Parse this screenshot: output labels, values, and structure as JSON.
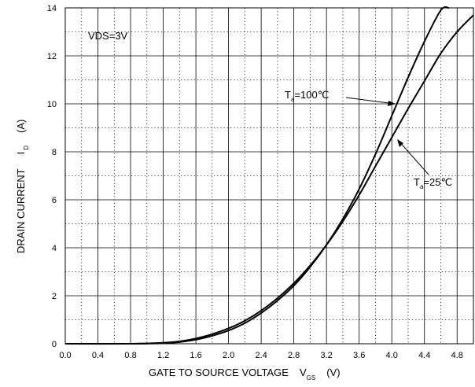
{
  "chart_data": {
    "type": "line",
    "title": "",
    "xlabel": {
      "main": "GATE TO SOURCE VOLTAGE",
      "symbol": "V",
      "subscript": "GS",
      "unit": "(V)"
    },
    "ylabel": {
      "main": "DRAIN CURRENT",
      "symbol": "I",
      "subscript": "D",
      "unit": "(A)"
    },
    "xlim": [
      0,
      5.0
    ],
    "ylim": [
      0,
      14
    ],
    "grid": true,
    "x_ticks": [
      "0.0",
      "0.4",
      "0.8",
      "1.2",
      "1.6",
      "2.0",
      "2.4",
      "2.8",
      "3.2",
      "3.6",
      "4.0",
      "4.4",
      "4.8"
    ],
    "y_ticks": [
      "0",
      "2",
      "4",
      "6",
      "8",
      "10",
      "12",
      "14"
    ],
    "annotation_condition": "VDS=3V",
    "series": [
      {
        "label": {
          "symbol": "T",
          "subscript": "a",
          "value": "=100℃"
        },
        "x": [
          0.0,
          0.8,
          1.2,
          1.4,
          1.6,
          1.8,
          2.0,
          2.2,
          2.4,
          2.6,
          2.8,
          3.0,
          3.2,
          3.4,
          3.6,
          3.8,
          4.0,
          4.2,
          4.4,
          4.6,
          4.7
        ],
        "y": [
          0.0,
          0.0,
          0.02,
          0.07,
          0.17,
          0.33,
          0.55,
          0.86,
          1.28,
          1.8,
          2.42,
          3.2,
          4.12,
          5.2,
          6.45,
          7.9,
          9.5,
          11.1,
          12.6,
          13.9,
          14.0
        ]
      },
      {
        "label": {
          "symbol": "T",
          "subscript": "a",
          "value": "=25℃"
        },
        "x": [
          0.0,
          0.8,
          1.2,
          1.4,
          1.6,
          1.8,
          2.0,
          2.2,
          2.4,
          2.6,
          2.8,
          3.0,
          3.2,
          3.4,
          3.6,
          3.8,
          4.0,
          4.2,
          4.4,
          4.6,
          4.8,
          5.0
        ],
        "y": [
          0.0,
          0.0,
          0.04,
          0.1,
          0.22,
          0.4,
          0.64,
          0.96,
          1.38,
          1.9,
          2.52,
          3.26,
          4.12,
          5.1,
          6.2,
          7.4,
          8.6,
          9.8,
          10.95,
          12.1,
          13.0,
          13.7
        ]
      }
    ]
  }
}
